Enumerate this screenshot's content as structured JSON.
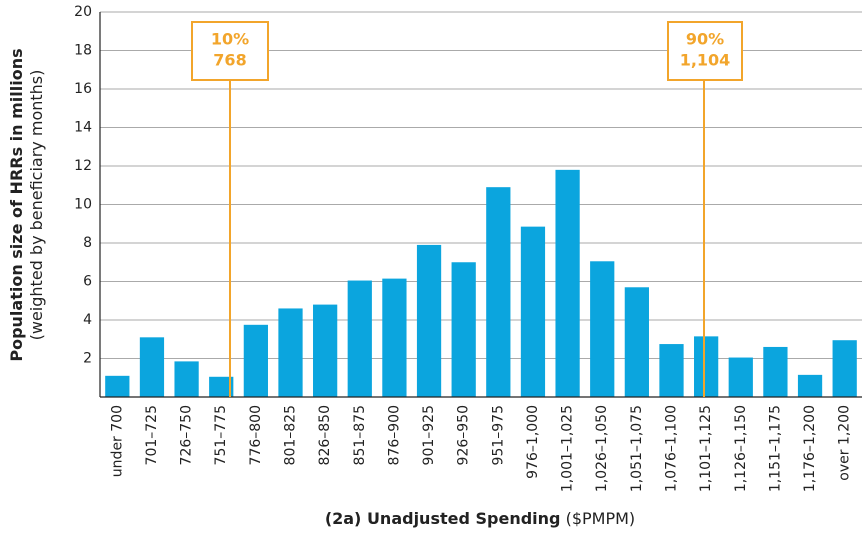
{
  "chart_data": {
    "type": "bar",
    "y_label": [
      "Population size of HRRs in millions",
      "(weighted by beneficiary months)"
    ],
    "x_label": [
      "(2a) Unadjusted Spending",
      "($PMPM)"
    ],
    "categories": [
      "under 700",
      "701–725",
      "726–750",
      "751–775",
      "776–800",
      "801–825",
      "826–850",
      "851–875",
      "876–900",
      "901–925",
      "926–950",
      "951–975",
      "976–1,000",
      "1,001–1,025",
      "1,026–1,050",
      "1,051–1,075",
      "1,076–1,100",
      "1,101–1,125",
      "1,126–1,150",
      "1,151–1,175",
      "1,176–1,200",
      "over 1,200"
    ],
    "values": [
      1.1,
      3.1,
      1.85,
      1.05,
      3.75,
      4.6,
      4.8,
      6.05,
      6.15,
      7.9,
      7.0,
      10.9,
      8.85,
      11.8,
      7.05,
      5.7,
      2.75,
      3.15,
      2.05,
      2.6,
      1.15,
      2.95
    ],
    "color": "#0ba5de",
    "ylim": [
      0,
      20
    ],
    "yticks": [
      2,
      4,
      6,
      8,
      10,
      12,
      14,
      16,
      18,
      20
    ],
    "grid": true,
    "annotations": [
      {
        "text": [
          "10%",
          "768"
        ],
        "color": "#f2a52b"
      },
      {
        "text": [
          "90%",
          "1,104"
        ],
        "color": "#f2a52b"
      }
    ]
  }
}
